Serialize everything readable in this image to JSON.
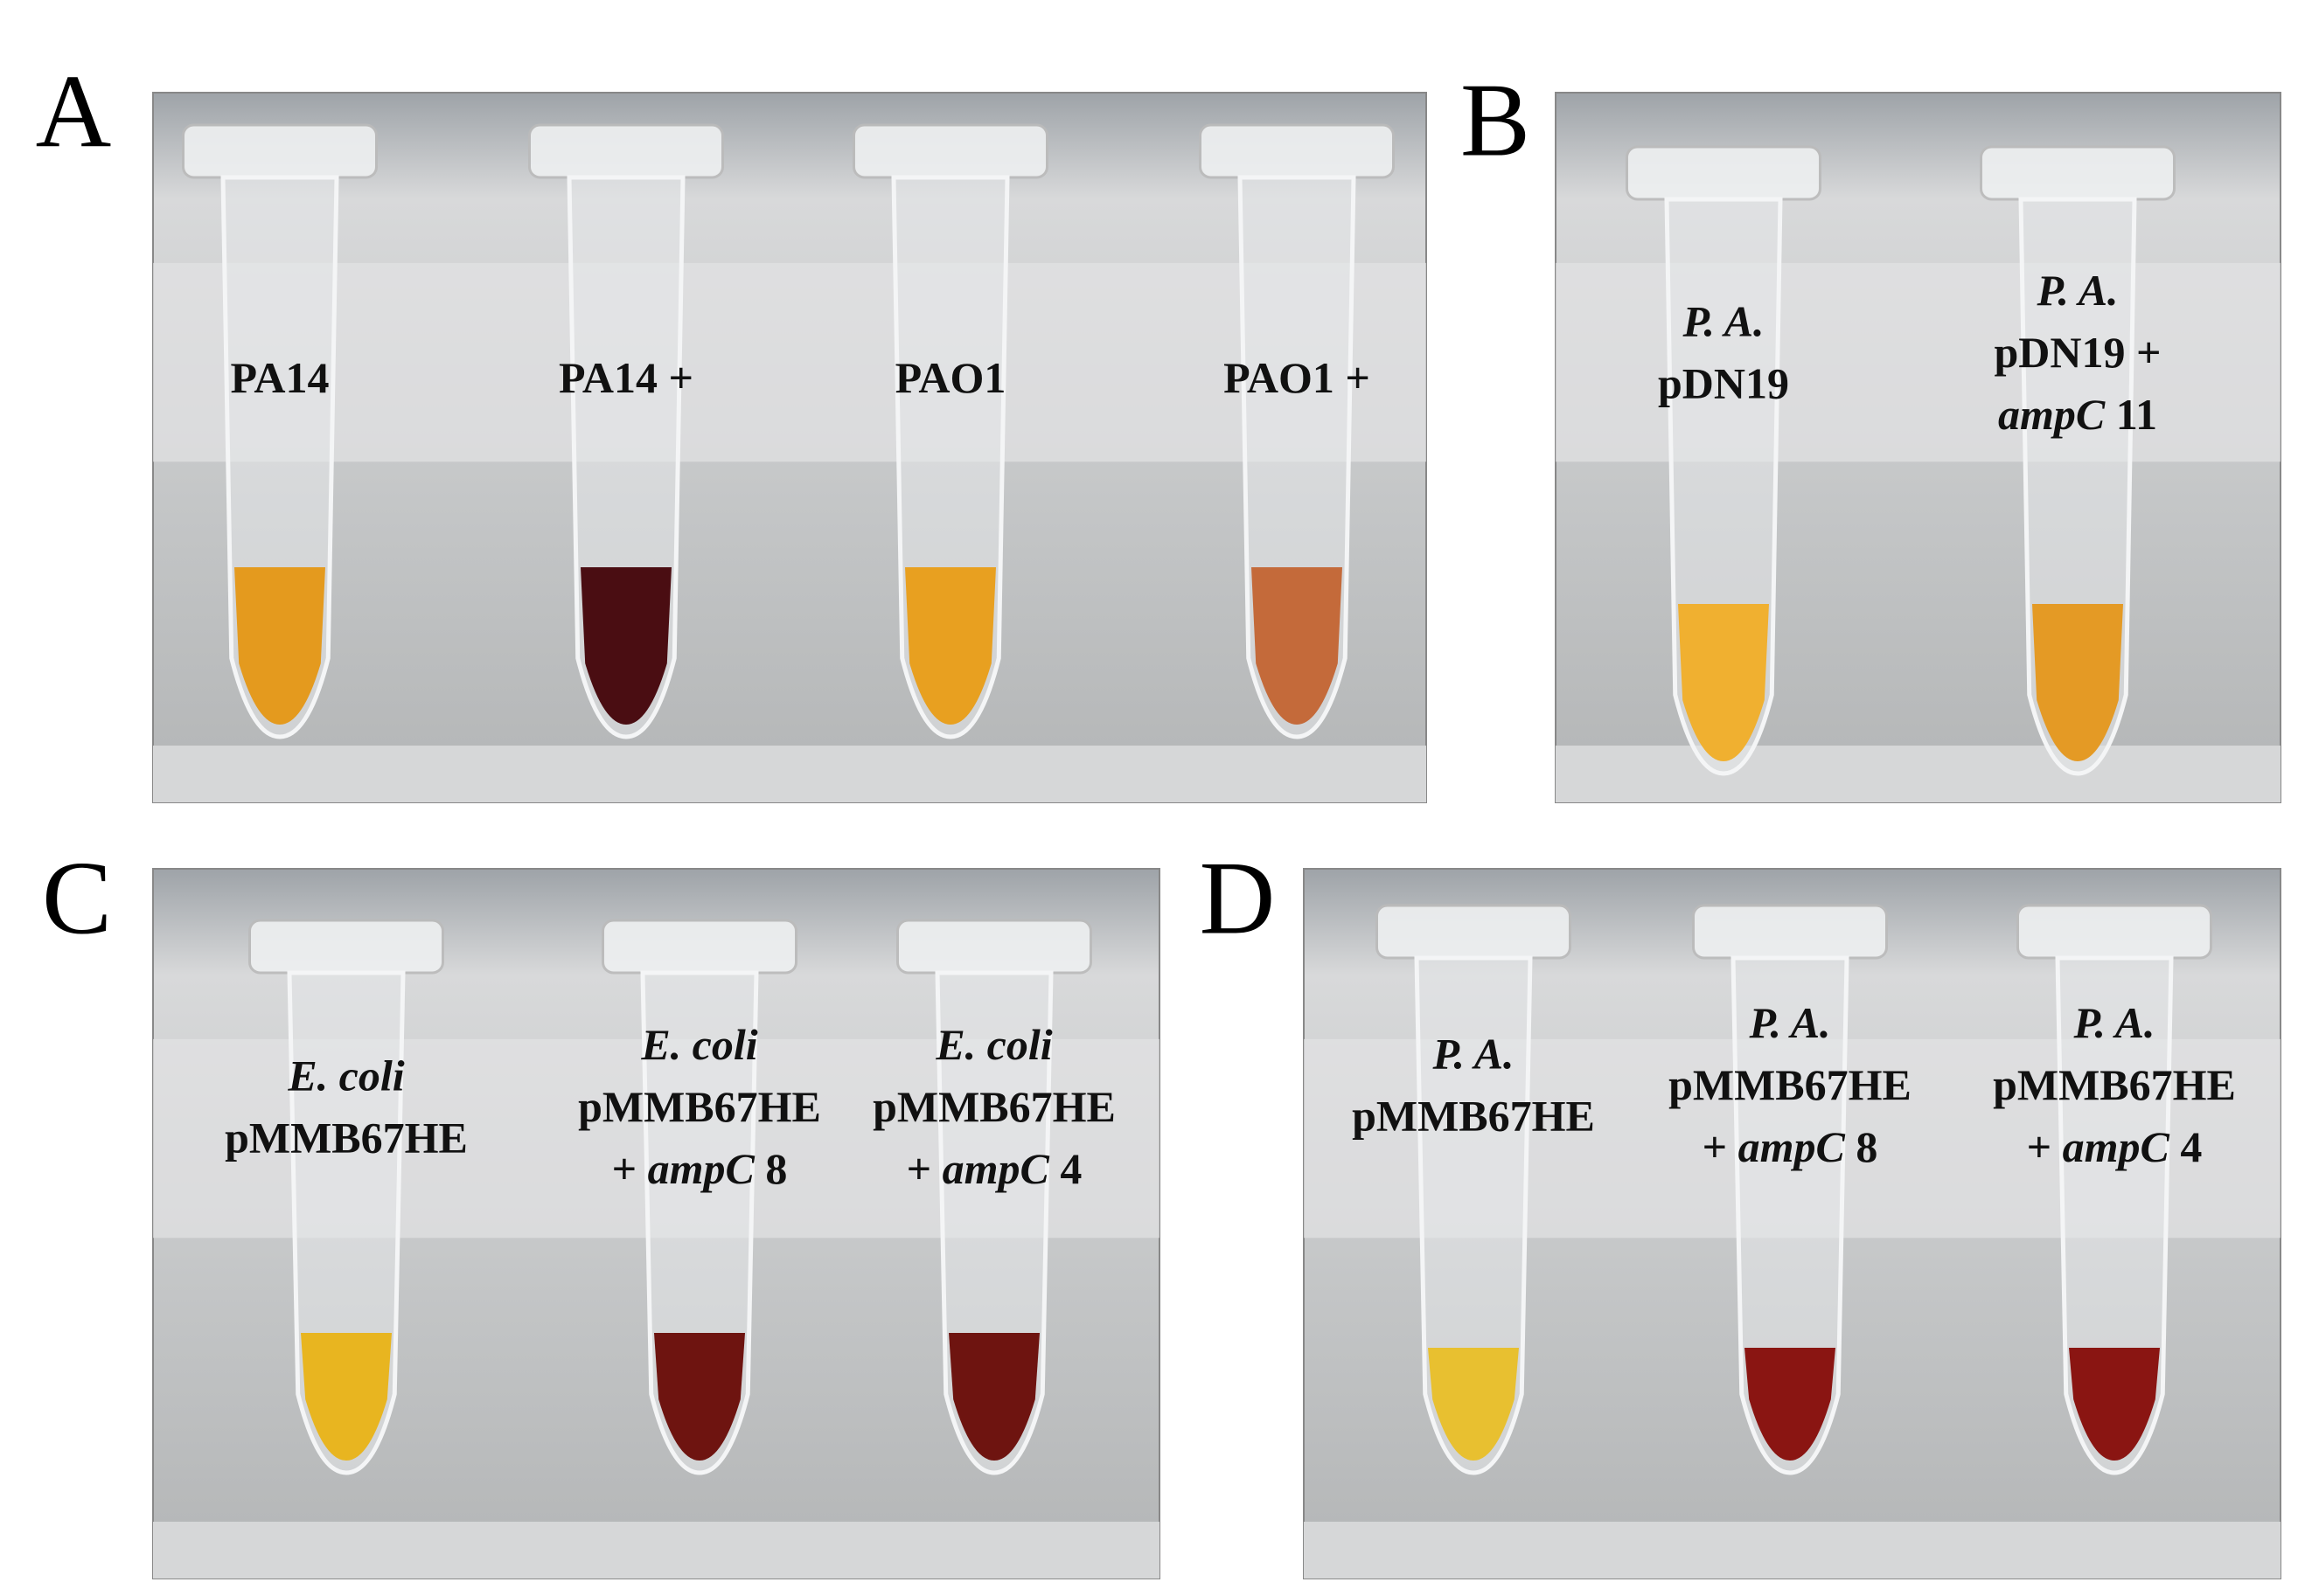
{
  "panels": [
    {
      "letter": "A",
      "tubes": [
        {
          "lines": [
            [
              {
                "text": "PA14",
                "italic": false
              }
            ]
          ]
        },
        {
          "lines": [
            [
              {
                "text": "PA14 +",
                "italic": false
              }
            ]
          ]
        },
        {
          "lines": [
            [
              {
                "text": "PAO1",
                "italic": false
              }
            ]
          ]
        },
        {
          "lines": [
            [
              {
                "text": "PAO1 +",
                "italic": false
              }
            ]
          ]
        }
      ]
    },
    {
      "letter": "B",
      "tubes": [
        {
          "lines": [
            [
              {
                "text": "P. A.",
                "italic": true
              }
            ],
            [
              {
                "text": "pDN19",
                "italic": false
              }
            ]
          ]
        },
        {
          "lines": [
            [
              {
                "text": "P. A.",
                "italic": true
              }
            ],
            [
              {
                "text": "pDN19 +",
                "italic": false
              }
            ],
            [
              {
                "text": "ampC",
                "italic": true
              },
              {
                "text": "11",
                "italic": false
              }
            ]
          ]
        }
      ]
    },
    {
      "letter": "C",
      "tubes": [
        {
          "lines": [
            [
              {
                "text": "E. coli",
                "italic": true
              }
            ],
            [
              {
                "text": "pMMB67HE",
                "italic": false
              }
            ]
          ]
        },
        {
          "lines": [
            [
              {
                "text": "E. coli",
                "italic": true
              }
            ],
            [
              {
                "text": "pMMB67HE",
                "italic": false
              }
            ],
            [
              {
                "text": "+",
                "italic": false
              },
              {
                "text": "ampC",
                "italic": true
              },
              {
                "text": "8",
                "italic": false
              }
            ]
          ]
        },
        {
          "lines": [
            [
              {
                "text": "E. coli",
                "italic": true
              }
            ],
            [
              {
                "text": "pMMB67HE",
                "italic": false
              }
            ],
            [
              {
                "text": "+",
                "italic": false
              },
              {
                "text": "ampC",
                "italic": true
              },
              {
                "text": "4",
                "italic": false
              }
            ]
          ]
        }
      ]
    },
    {
      "letter": "D",
      "tubes": [
        {
          "lines": [
            [
              {
                "text": "P. A.",
                "italic": true
              }
            ],
            [
              {
                "text": "pMMB67HE",
                "italic": false
              }
            ]
          ]
        },
        {
          "lines": [
            [
              {
                "text": "P. A.",
                "italic": true
              }
            ],
            [
              {
                "text": "pMMB67HE",
                "italic": false
              }
            ],
            [
              {
                "text": "+",
                "italic": false
              },
              {
                "text": "ampC",
                "italic": true
              },
              {
                "text": "8",
                "italic": false
              }
            ]
          ]
        },
        {
          "lines": [
            [
              {
                "text": "P. A.",
                "italic": true
              }
            ],
            [
              {
                "text": "pMMB67HE",
                "italic": false
              }
            ],
            [
              {
                "text": "+",
                "italic": false
              },
              {
                "text": "ampC",
                "italic": true
              },
              {
                "text": "4",
                "italic": false
              }
            ]
          ]
        }
      ]
    }
  ]
}
